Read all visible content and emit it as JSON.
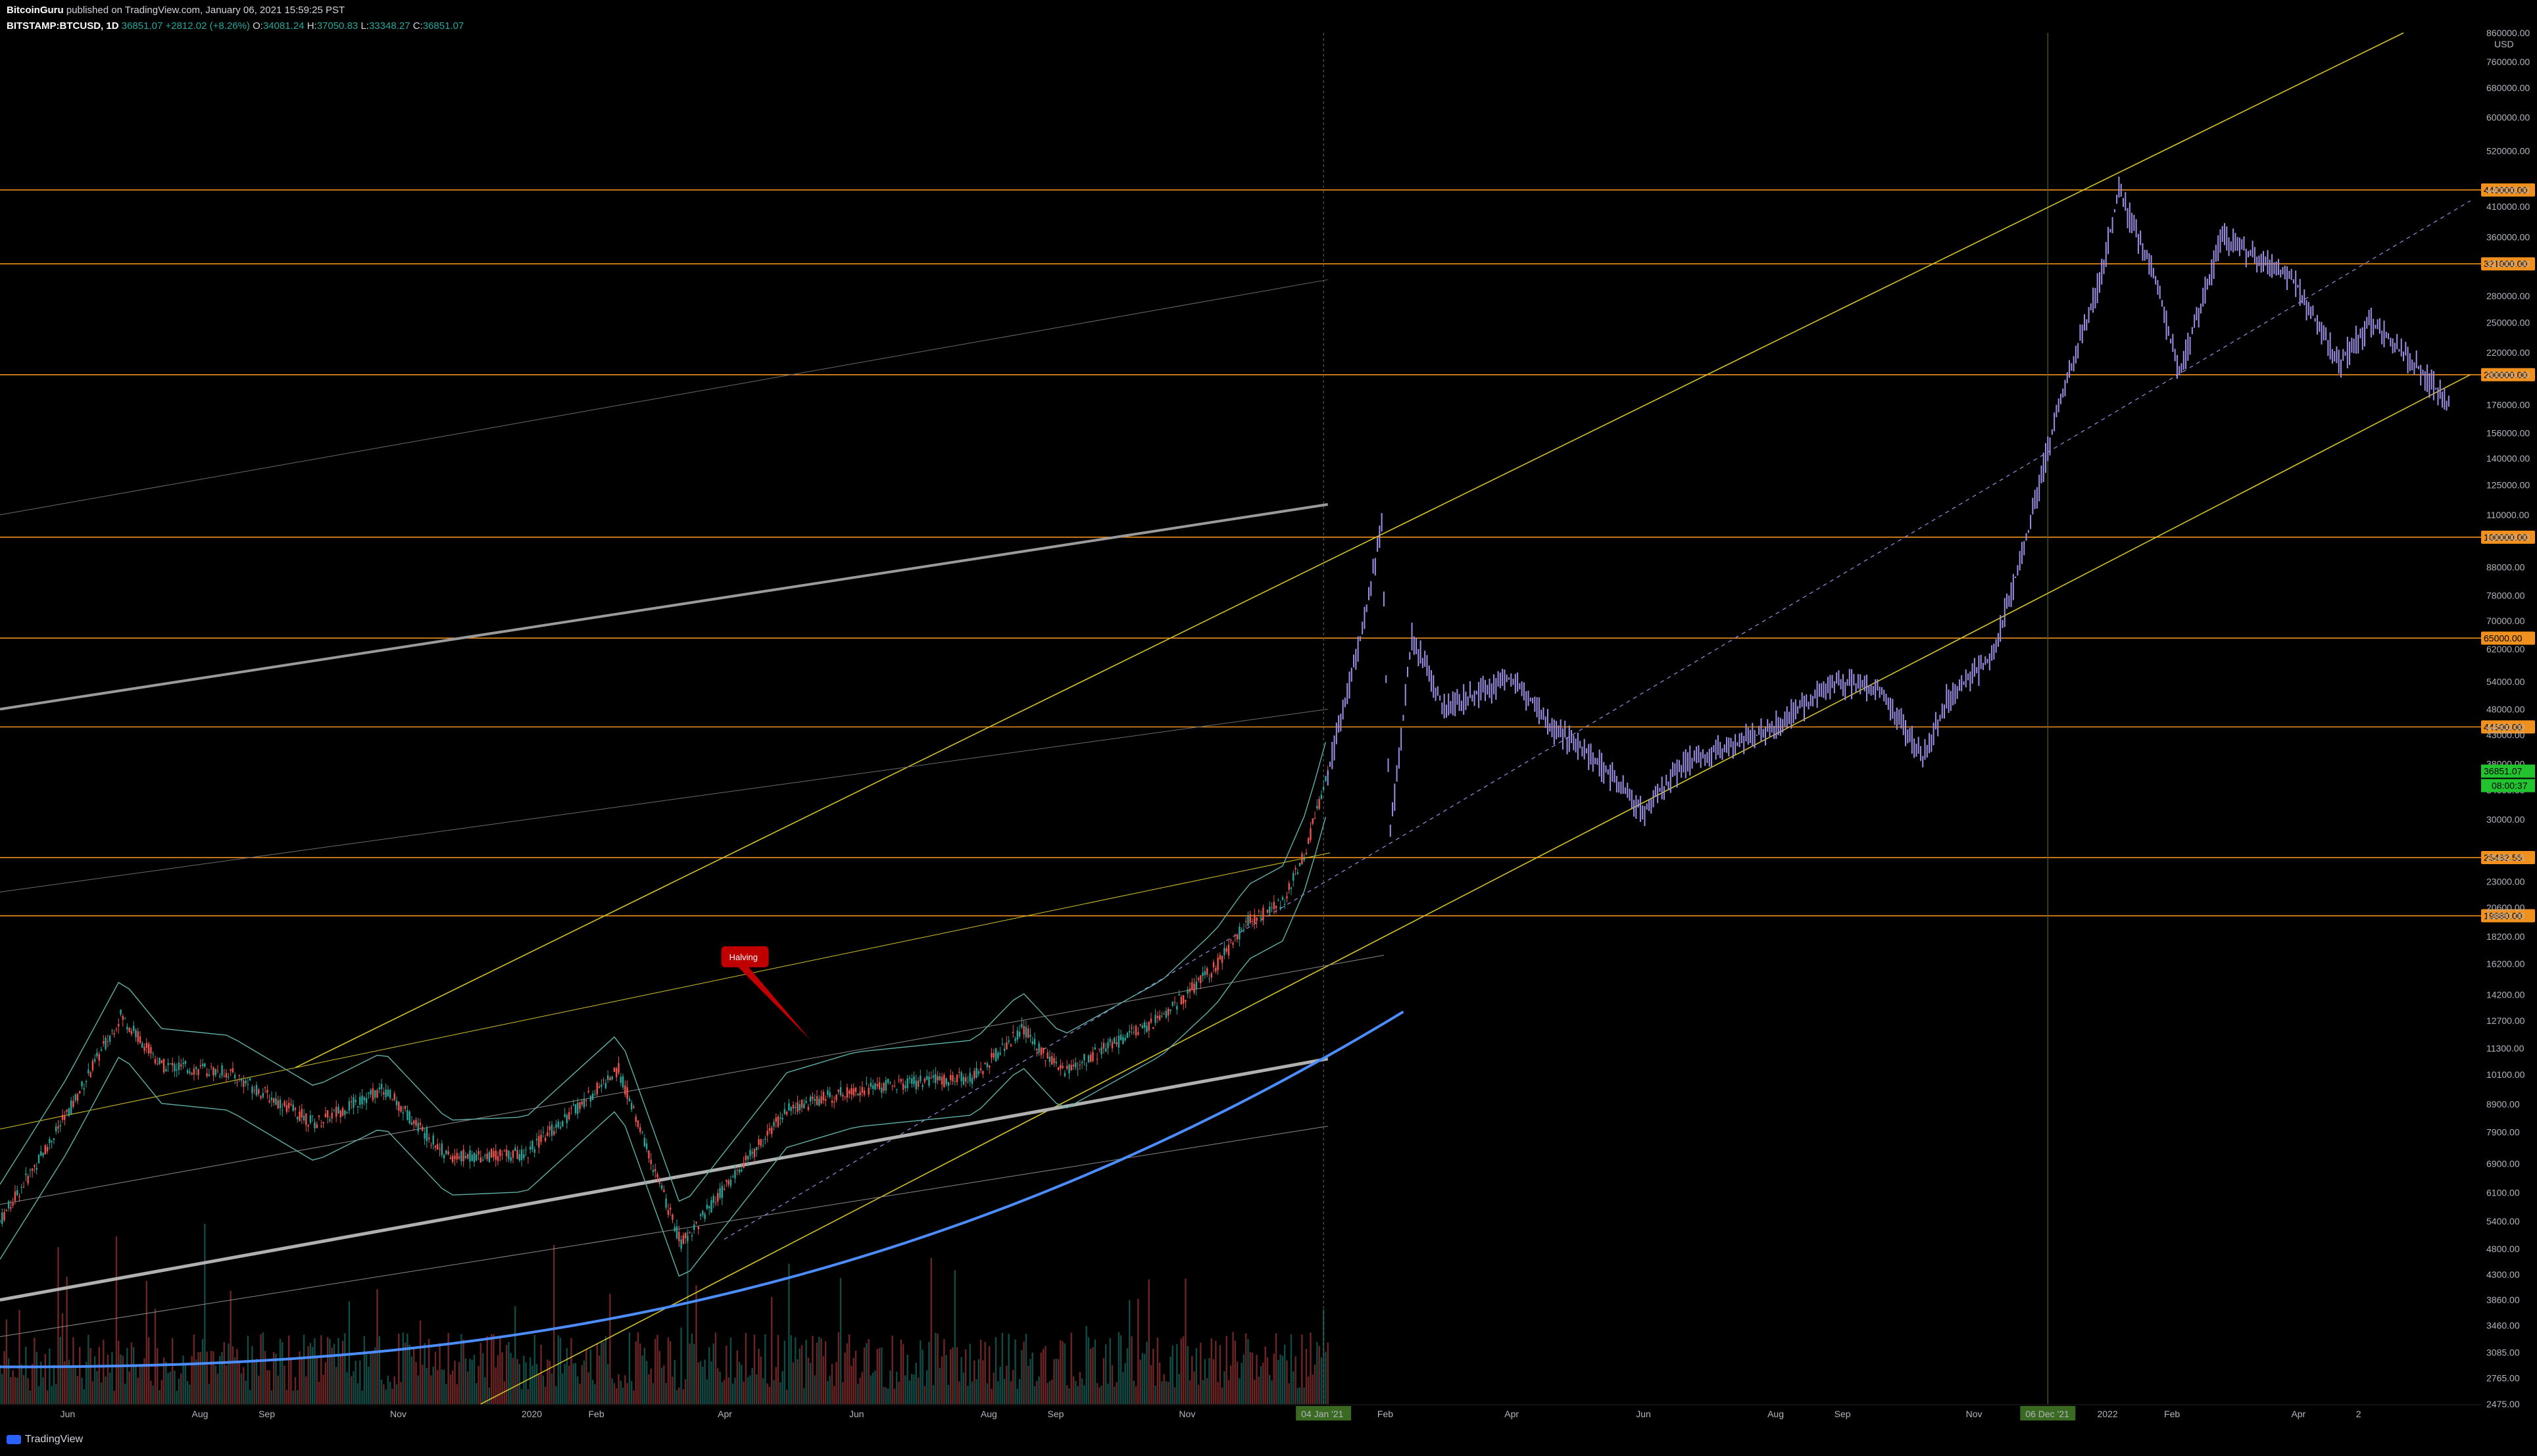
{
  "header": {
    "author": "BitcoinGuru",
    "published": "published on TradingView.com, January 06, 2021 15:59:25 PST",
    "symbol": "BITSTAMP:BTCUSD, 1D",
    "last": "36851.07",
    "change": "+2812.02 (+8.26%)",
    "o_label": "O:",
    "o": "34081.24",
    "h_label": "H:",
    "h": "37050.83",
    "l_label": "L:",
    "l": "33348.27",
    "c_label": "C:",
    "c": "36851.07"
  },
  "footer": {
    "brand": "TradingView"
  },
  "annotation": {
    "label": "Halving"
  },
  "colors": {
    "background": "#000000",
    "up": "#26a69a",
    "down": "#ef5350",
    "projection": "#9b8fe6",
    "channel": "#d4c32a",
    "level": "#f0901e",
    "trend_gray": "#8a8a8a",
    "curve": "#4c8dff",
    "bollinger": "#5fb0a8",
    "halving": "#c00000",
    "current_price": "#22c32e"
  },
  "chart_data": {
    "type": "line",
    "scale": "log",
    "ylabel": "USD",
    "ylim": [
      2475,
      860000
    ],
    "y_ticks": [
      "860000.00",
      "760000.00",
      "680000.00",
      "600000.00",
      "520000.00",
      "440000.00",
      "410000.00",
      "360000.00",
      "321000.00",
      "280000.00",
      "250000.00",
      "220000.00",
      "200000.00",
      "176000.00",
      "156000.00",
      "140000.00",
      "125000.00",
      "110000.00",
      "100000.00",
      "88000.00",
      "78000.00",
      "70000.00",
      "62000.00",
      "54000.00",
      "48000.00",
      "44500.00",
      "43000.00",
      "38000.00",
      "34000.00",
      "30000.00",
      "25482.55",
      "23000.00",
      "20600.00",
      "19880.00",
      "18200.00",
      "16200.00",
      "14200.00",
      "12700.00",
      "11300.00",
      "10100.00",
      "8900.00",
      "7900.00",
      "6900.00",
      "6100.00",
      "5400.00",
      "4800.00",
      "4300.00",
      "3860.00",
      "3460.00",
      "3085.00",
      "2765.00",
      "2475.00"
    ],
    "horizontal_levels": [
      {
        "label": "440000.00",
        "value": 440000
      },
      {
        "label": "321000.00",
        "value": 321000
      },
      {
        "label": "200000.00",
        "value": 200000
      },
      {
        "label": "100000.00",
        "value": 100000
      },
      {
        "label": "65000.00",
        "value": 65000
      },
      {
        "label": "44500.00",
        "value": 44500
      },
      {
        "label": "25482.55",
        "value": 25482.55
      },
      {
        "label": "19880.00",
        "value": 19880
      }
    ],
    "current_price": {
      "label": "36851.07",
      "value": 36851.07
    },
    "countdown": {
      "label": "08:00:37"
    },
    "x_ticks": [
      "Jun",
      "Aug",
      "Sep",
      "Nov",
      "2020",
      "Feb",
      "Apr",
      "Jun",
      "Aug",
      "Sep",
      "Nov",
      "Feb",
      "Apr",
      "Jun",
      "Aug",
      "Sep",
      "Nov",
      "2022",
      "Feb",
      "Apr",
      "2"
    ],
    "x_highlights": [
      {
        "label": "04 Jan '21",
        "date": "2021-01-04"
      },
      {
        "label": "06 Dec '21",
        "date": "2021-12-06"
      }
    ],
    "historical_close": [
      [
        "2019-05-01",
        5400
      ],
      [
        "2019-06-01",
        8500
      ],
      [
        "2019-06-26",
        13000
      ],
      [
        "2019-07-15",
        10500
      ],
      [
        "2019-08-15",
        10200
      ],
      [
        "2019-09-24",
        8200
      ],
      [
        "2019-10-26",
        9500
      ],
      [
        "2019-11-25",
        7100
      ],
      [
        "2019-12-31",
        7200
      ],
      [
        "2020-02-12",
        10300
      ],
      [
        "2020-03-12",
        4900
      ],
      [
        "2020-04-30",
        8700
      ],
      [
        "2020-06-01",
        9500
      ],
      [
        "2020-07-26",
        10000
      ],
      [
        "2020-08-17",
        12300
      ],
      [
        "2020-09-05",
        10200
      ],
      [
        "2020-10-21",
        12900
      ],
      [
        "2020-11-15",
        16000
      ],
      [
        "2020-11-30",
        19400
      ],
      [
        "2020-12-16",
        21000
      ],
      [
        "2020-12-27",
        26500
      ],
      [
        "2021-01-06",
        36851
      ]
    ],
    "projected_path": [
      [
        "2021-01-06",
        36851
      ],
      [
        "2021-01-20",
        62000
      ],
      [
        "2021-01-31",
        104000
      ],
      [
        "2021-02-04",
        28000
      ],
      [
        "2021-02-14",
        66000
      ],
      [
        "2021-03-01",
        48000
      ],
      [
        "2021-04-01",
        55000
      ],
      [
        "2021-04-20",
        44500
      ],
      [
        "2021-05-10",
        39000
      ],
      [
        "2021-06-01",
        31000
      ],
      [
        "2021-06-20",
        38000
      ],
      [
        "2021-07-30",
        44000
      ],
      [
        "2021-08-30",
        54000
      ],
      [
        "2021-09-20",
        52000
      ],
      [
        "2021-10-09",
        39000
      ],
      [
        "2021-10-20",
        50000
      ],
      [
        "2021-11-10",
        60000
      ],
      [
        "2021-11-25",
        95000
      ],
      [
        "2021-12-10",
        170000
      ],
      [
        "2021-12-30",
        300000
      ],
      [
        "2022-01-08",
        438000
      ],
      [
        "2022-01-25",
        300000
      ],
      [
        "2022-02-05",
        200000
      ],
      [
        "2022-02-25",
        360000
      ],
      [
        "2022-03-30",
        300000
      ],
      [
        "2022-04-20",
        210000
      ],
      [
        "2022-05-05",
        250000
      ],
      [
        "2022-05-25",
        210000
      ],
      [
        "2022-06-10",
        177000
      ]
    ]
  }
}
